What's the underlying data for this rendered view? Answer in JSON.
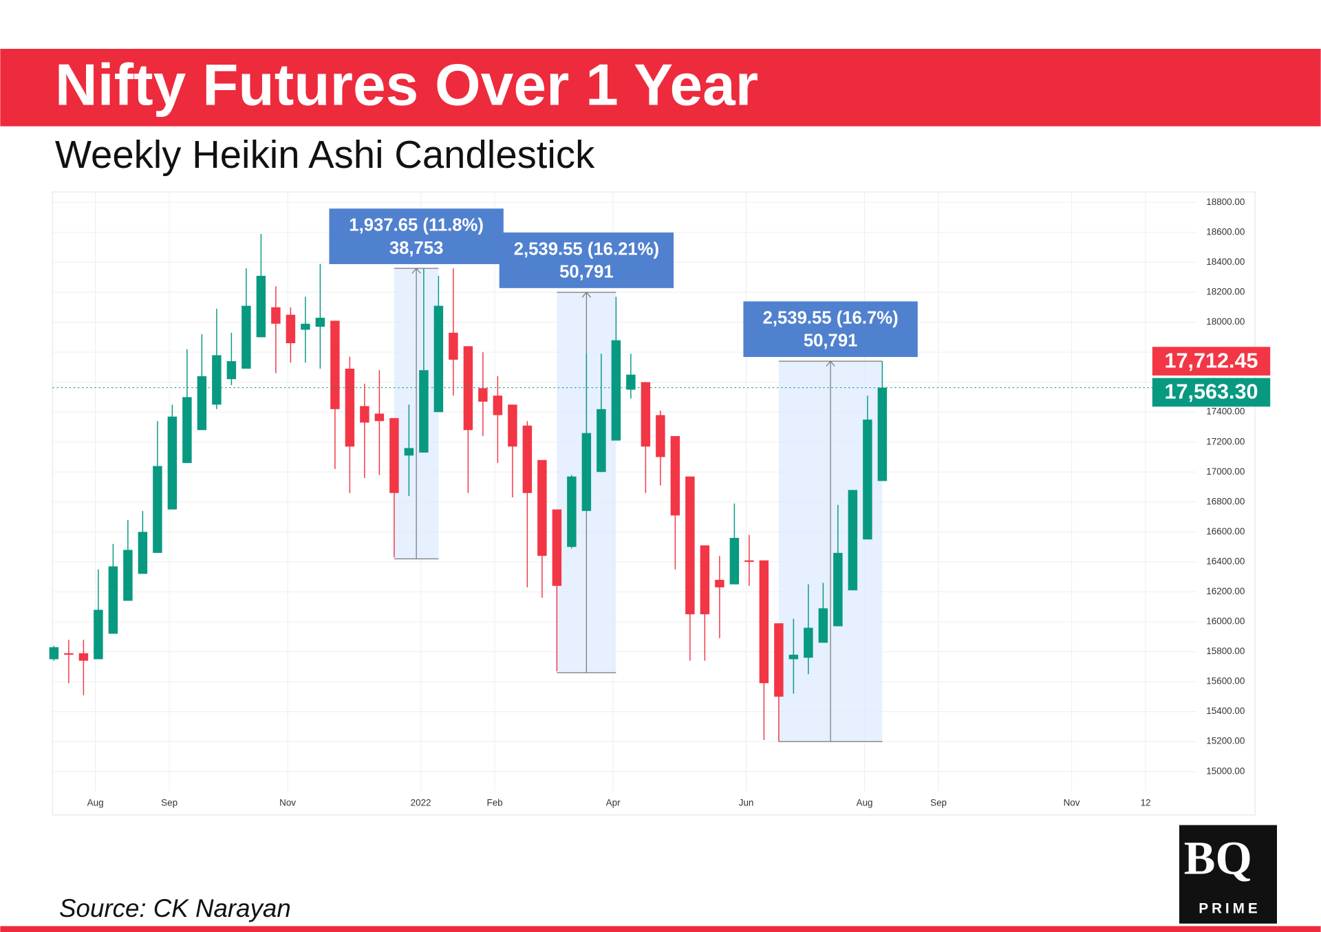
{
  "chart_data": {
    "type": "candlestick",
    "title": "Nifty Futures Over 1 Year",
    "subtitle": "Weekly Heikin Ashi Candlestick",
    "categories": [
      null,
      null,
      null,
      null,
      null,
      null,
      null,
      null,
      null,
      null,
      null,
      null,
      null,
      null,
      null,
      null,
      null,
      null,
      null,
      null,
      null,
      null,
      null,
      null,
      null,
      null,
      null,
      null,
      null,
      null,
      null,
      null,
      null,
      null,
      null,
      null,
      null,
      null,
      null,
      null,
      null,
      null,
      null,
      null,
      null,
      null,
      null,
      null,
      null,
      null,
      null,
      null,
      null,
      null,
      null,
      null,
      null
    ],
    "open": [
      15750,
      15790,
      15790,
      15750,
      15920,
      16140,
      16320,
      16460,
      16750,
      17060,
      17280,
      17450,
      17620,
      17690,
      17900,
      18100,
      18050,
      17950,
      17970,
      18010,
      17690,
      17440,
      17390,
      17360,
      17110,
      17130,
      17400,
      17930,
      17840,
      17560,
      17510,
      17450,
      17310,
      17080,
      16750,
      16500,
      16740,
      17000,
      17210,
      17550,
      17600,
      17380,
      17240,
      16970,
      16510,
      16280,
      16250,
      16410,
      16410,
      15990,
      15750,
      15760,
      15860,
      15970,
      16210,
      16550,
      16940
    ],
    "high": [
      15840,
      15880,
      15880,
      16350,
      16520,
      16680,
      16740,
      17340,
      17450,
      17820,
      17920,
      18090,
      17930,
      18360,
      18590,
      18240,
      18100,
      18170,
      18390,
      18010,
      17770,
      17590,
      17680,
      17360,
      17450,
      18360,
      18310,
      18360,
      17840,
      17800,
      17640,
      17450,
      17340,
      17080,
      16750,
      16980,
      17790,
      17790,
      18170,
      17790,
      17600,
      17410,
      17240,
      16970,
      16510,
      16440,
      16790,
      16580,
      16410,
      15990,
      16020,
      16250,
      16260,
      16780,
      16880,
      17510,
      17740
    ],
    "low": [
      15740,
      15590,
      15510,
      15750,
      15920,
      16140,
      16320,
      16460,
      16750,
      17060,
      17280,
      17420,
      17580,
      17690,
      17900,
      17660,
      17730,
      17730,
      17690,
      17020,
      16860,
      16960,
      16980,
      16430,
      16840,
      17130,
      17400,
      17510,
      16860,
      17240,
      17060,
      16830,
      16230,
      16160,
      15670,
      16490,
      16740,
      17000,
      17210,
      17490,
      16860,
      16910,
      16350,
      15740,
      15740,
      15890,
      16250,
      16240,
      15210,
      15200,
      15520,
      15650,
      15860,
      15970,
      16210,
      16550,
      16940
    ],
    "close": [
      15830,
      15780,
      15740,
      16080,
      16370,
      16480,
      16600,
      17040,
      17370,
      17500,
      17640,
      17780,
      17740,
      18110,
      18310,
      17990,
      17860,
      17990,
      18030,
      17420,
      17170,
      17330,
      17340,
      16860,
      17160,
      17680,
      18110,
      17750,
      17280,
      17470,
      17380,
      17170,
      16860,
      16440,
      16240,
      16970,
      17260,
      17420,
      17880,
      17650,
      17170,
      17100,
      16710,
      16050,
      16050,
      16230,
      16560,
      16400,
      15590,
      15500,
      15780,
      15960,
      16090,
      16460,
      16880,
      17350,
      17563.3
    ],
    "up_color": "#089981",
    "down_color": "#f23645",
    "xlim": [
      -0.1,
      81.2
    ],
    "xticks": [
      {
        "value": 2.8,
        "label": "Aug"
      },
      {
        "value": 7.8,
        "label": "Sep"
      },
      {
        "value": 15.8,
        "label": "Nov"
      },
      {
        "value": 24.8,
        "label": "2022"
      },
      {
        "value": 29.8,
        "label": "Feb"
      },
      {
        "value": 37.8,
        "label": "Apr"
      },
      {
        "value": 46.8,
        "label": "Jun"
      },
      {
        "value": 54.8,
        "label": "Aug"
      },
      {
        "value": 59.8,
        "label": "Sep"
      },
      {
        "value": 68.8,
        "label": "Nov"
      },
      {
        "value": 73.8,
        "label": "12"
      }
    ],
    "ylim": [
      14710,
      18870
    ],
    "yticks": [
      {
        "value": 15000,
        "label": "15000.00"
      },
      {
        "value": 15200,
        "label": "15200.00"
      },
      {
        "value": 15400,
        "label": "15400.00"
      },
      {
        "value": 15600,
        "label": "15600.00"
      },
      {
        "value": 15800,
        "label": "15800.00"
      },
      {
        "value": 16000,
        "label": "16000.00"
      },
      {
        "value": 16200,
        "label": "16200.00"
      },
      {
        "value": 16400,
        "label": "16400.00"
      },
      {
        "value": 16600,
        "label": "16600.00"
      },
      {
        "value": 16800,
        "label": "16800.00"
      },
      {
        "value": 17000,
        "label": "17000.00"
      },
      {
        "value": 17200,
        "label": "17200.00"
      },
      {
        "value": 17400,
        "label": "17400.00"
      },
      {
        "value": 17600,
        "label": "17600.00"
      },
      {
        "value": 17800,
        "label": "17800.00"
      },
      {
        "value": 18000,
        "label": "18000.00"
      },
      {
        "value": 18200,
        "label": "18200.00"
      },
      {
        "value": 18400,
        "label": "18400.00"
      },
      {
        "value": 18600,
        "label": "18600.00"
      },
      {
        "value": 18800,
        "label": "18800.00"
      }
    ],
    "grid": true,
    "measures": [
      {
        "low": 16420,
        "high": 18360,
        "label": "1,937.65 (11.8%)",
        "bars": "38,753"
      },
      {
        "low": 15660,
        "high": 18200,
        "label": "2,539.55 (16.21%)",
        "bars": "50,791"
      },
      {
        "low": 15200,
        "high": 17740,
        "label": "2,539.55 (16.7%)",
        "bars": "50,791"
      }
    ],
    "price_labels": [
      {
        "value": 17712.45,
        "label": "17,712.45",
        "color": "#f23645"
      },
      {
        "value": 17563.3,
        "label": "17,563.30",
        "color": "#089981"
      }
    ],
    "source": "Source: CK Narayan"
  },
  "logo": {
    "mark": "BQ",
    "sub": "PRIME"
  }
}
